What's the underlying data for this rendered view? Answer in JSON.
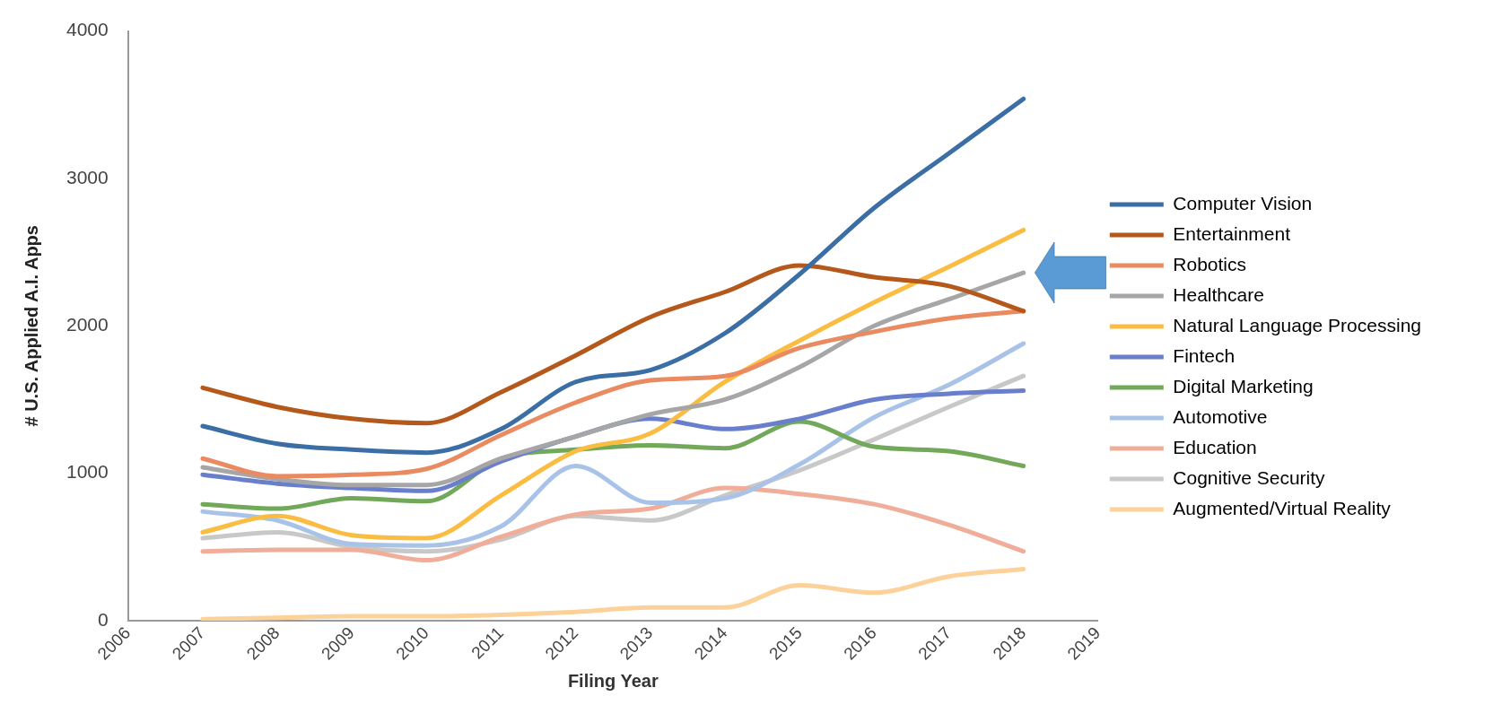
{
  "chart_data": {
    "type": "line",
    "xlabel": "Filing Year",
    "ylabel": "# U.S. Applied A.I. Apps",
    "x": [
      2007,
      2008,
      2009,
      2010,
      2011,
      2012,
      2013,
      2014,
      2015,
      2016,
      2017,
      2018
    ],
    "xlim": [
      2006,
      2019
    ],
    "xticks": [
      2006,
      2007,
      2008,
      2009,
      2010,
      2011,
      2012,
      2013,
      2014,
      2015,
      2016,
      2017,
      2018,
      2019
    ],
    "ylim": [
      0,
      4000
    ],
    "yticks": [
      0,
      1000,
      2000,
      3000,
      4000
    ],
    "grid": false,
    "legend": "right",
    "marker": "none",
    "line_style": "solid",
    "series": [
      {
        "name": "Computer Vision",
        "color": "#3a6ea5",
        "values": [
          1320,
          1200,
          1160,
          1140,
          1300,
          1620,
          1700,
          1950,
          2350,
          2800,
          3170,
          3540
        ]
      },
      {
        "name": "Entertainment",
        "color": "#b5581c",
        "values": [
          1580,
          1450,
          1370,
          1340,
          1550,
          1800,
          2060,
          2230,
          2410,
          2330,
          2270,
          2100
        ]
      },
      {
        "name": "Robotics",
        "color": "#ea8a60",
        "values": [
          1100,
          980,
          990,
          1030,
          1260,
          1480,
          1630,
          1660,
          1850,
          1960,
          2050,
          2100
        ]
      },
      {
        "name": "Healthcare",
        "color": "#a6a6a6",
        "values": [
          1040,
          960,
          920,
          920,
          1100,
          1250,
          1400,
          1500,
          1720,
          2000,
          2180,
          2360
        ]
      },
      {
        "name": "Natural Language Processing",
        "color": "#fbbc42",
        "values": [
          600,
          710,
          580,
          560,
          850,
          1150,
          1270,
          1620,
          1900,
          2160,
          2400,
          2650
        ]
      },
      {
        "name": "Fintech",
        "color": "#6a7fcc",
        "values": [
          990,
          930,
          900,
          880,
          1080,
          1250,
          1370,
          1300,
          1370,
          1500,
          1540,
          1560
        ]
      },
      {
        "name": "Digital Marketing",
        "color": "#72a85a",
        "values": [
          790,
          760,
          830,
          810,
          1100,
          1160,
          1190,
          1170,
          1350,
          1180,
          1150,
          1050
        ]
      },
      {
        "name": "Automotive",
        "color": "#a9c3e8",
        "values": [
          740,
          680,
          520,
          510,
          640,
          1050,
          800,
          830,
          1060,
          1380,
          1600,
          1880
        ]
      },
      {
        "name": "Education",
        "color": "#f0ad9a",
        "values": [
          470,
          480,
          480,
          410,
          570,
          720,
          760,
          900,
          860,
          790,
          650,
          470
        ]
      },
      {
        "name": "Cognitive Security",
        "color": "#c8c8c8",
        "values": [
          560,
          600,
          500,
          470,
          550,
          710,
          680,
          850,
          1020,
          1230,
          1450,
          1660
        ]
      },
      {
        "name": "Augmented/Virtual Reality",
        "color": "#fdd29a",
        "values": [
          10,
          20,
          30,
          30,
          40,
          60,
          90,
          90,
          240,
          190,
          300,
          350
        ]
      }
    ]
  }
}
